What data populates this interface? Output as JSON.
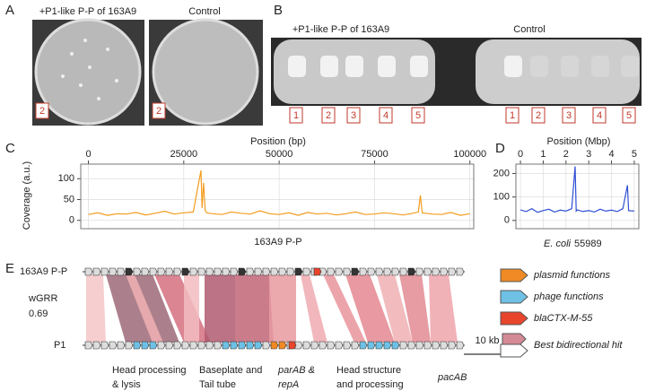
{
  "panels": {
    "a": "A",
    "b": "B",
    "c": "C",
    "d": "D",
    "e": "E"
  },
  "photo_a": {
    "treated": "+P1-like P-P of 163A9",
    "control": "Control",
    "treated_label": "2",
    "control_label": "2"
  },
  "photo_b": {
    "treated": "+P1-like P-P of 163A9",
    "control": "Control",
    "treated_labels": [
      "1",
      "2",
      "3",
      "4",
      "5"
    ],
    "control_labels": [
      "1",
      "2",
      "3",
      "4",
      "5"
    ]
  },
  "chart_data": [
    {
      "type": "line",
      "xlabel": "Position (bp)",
      "ylabel": "Coverage (a.u.)",
      "caption": "163A9 P-P",
      "color": "#f39c1f",
      "x": [
        0,
        2500,
        5000,
        7500,
        10000,
        12500,
        15000,
        17500,
        20000,
        22500,
        25000,
        27500,
        29500,
        29800,
        30200,
        30600,
        31000,
        32500,
        35000,
        37500,
        40000,
        42500,
        45000,
        47500,
        50000,
        52500,
        55000,
        57500,
        60000,
        62500,
        65000,
        67500,
        70000,
        72500,
        75000,
        77500,
        80000,
        82500,
        85000,
        86500,
        87000,
        87500,
        90000,
        92500,
        95000,
        97500,
        100000
      ],
      "values": [
        14,
        18,
        12,
        16,
        15,
        19,
        13,
        17,
        22,
        15,
        18,
        20,
        120,
        30,
        90,
        25,
        18,
        16,
        14,
        20,
        17,
        15,
        23,
        16,
        14,
        18,
        12,
        19,
        15,
        17,
        13,
        16,
        20,
        14,
        15,
        18,
        16,
        13,
        17,
        20,
        60,
        18,
        15,
        14,
        19,
        12,
        16
      ],
      "xlim": [
        -2000,
        101000
      ],
      "xticks": [
        0,
        25000,
        50000,
        75000,
        100000
      ],
      "ylim": [
        -20,
        135
      ],
      "yticks": [
        0,
        50,
        100
      ],
      "grid": true
    },
    {
      "type": "line",
      "xlabel": "Position (Mbp)",
      "caption_italic": "E. coli",
      "caption": "55989",
      "color": "#2f4fd4",
      "x": [
        0,
        0.25,
        0.5,
        0.75,
        1,
        1.25,
        1.5,
        1.75,
        2,
        2.25,
        2.4,
        2.45,
        2.5,
        2.75,
        3,
        3.25,
        3.5,
        3.75,
        4,
        4.25,
        4.5,
        4.7,
        4.75,
        5
      ],
      "values": [
        45,
        38,
        50,
        35,
        42,
        48,
        36,
        44,
        40,
        50,
        230,
        40,
        45,
        38,
        42,
        36,
        48,
        40,
        44,
        38,
        50,
        150,
        42,
        40
      ],
      "xlim": [
        -0.2,
        5.2
      ],
      "xticks": [
        0,
        1,
        2,
        3,
        4,
        5
      ],
      "ylim": [
        -35,
        240
      ],
      "yticks": [
        0,
        100,
        200
      ],
      "grid": true
    }
  ],
  "synteny": {
    "top_label": "163A9 P-P",
    "wgrr_label": "wGRR",
    "wgrr_value": "0.69",
    "bottom_label": "P1",
    "scale": "10 kb",
    "regions": [
      [
        "Head processing",
        "& lysis"
      ],
      [
        "Baseplate and",
        "Tail tube"
      ],
      [
        "parAB &",
        "repA"
      ],
      [
        "Head structure",
        "and processing"
      ],
      [
        "pacAB"
      ]
    ],
    "legend": [
      "plasmid functions",
      "phage functions",
      "blaCTX-M-55",
      "Best bidirectional hit"
    ]
  }
}
